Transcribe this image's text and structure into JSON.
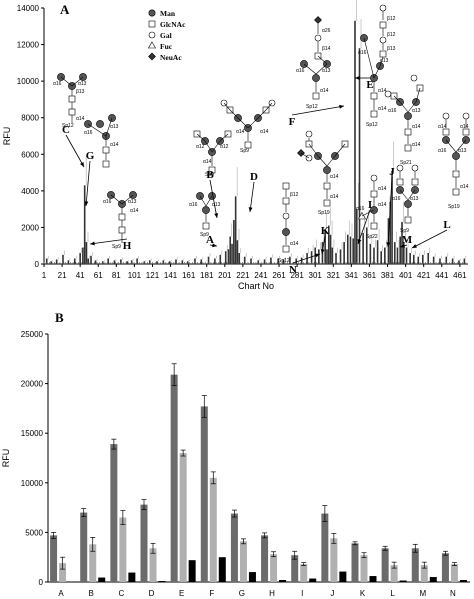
{
  "chart_data": [
    {
      "type": "bar",
      "panel_label": "A",
      "xlabel": "Chart No",
      "ylabel": "RFU",
      "ylim": [
        0,
        14000
      ],
      "yticks": [
        0,
        2000,
        4000,
        6000,
        8000,
        10000,
        12000,
        14000
      ],
      "xlim": [
        1,
        470
      ],
      "xticks": [
        1,
        21,
        41,
        61,
        81,
        101,
        121,
        141,
        161,
        181,
        201,
        221,
        241,
        261,
        281,
        301,
        321,
        341,
        361,
        381,
        401,
        421,
        441,
        461
      ],
      "grid": false,
      "x": [
        4,
        9,
        15,
        22,
        28,
        35,
        41,
        44,
        46,
        48,
        50,
        53,
        58,
        66,
        72,
        79,
        86,
        93,
        98,
        104,
        112,
        118,
        126,
        133,
        140,
        147,
        154,
        160,
        168,
        175,
        183,
        190,
        196,
        202,
        205,
        207,
        209,
        211,
        213,
        215,
        217,
        223,
        230,
        238,
        245,
        252,
        260,
        266,
        273,
        280,
        286,
        292,
        297,
        301,
        305,
        309,
        312,
        314,
        316,
        318,
        320,
        324,
        329,
        333,
        337,
        340,
        343,
        345,
        347,
        350,
        354,
        358,
        362,
        366,
        370,
        374,
        378,
        382,
        384,
        386,
        389,
        392,
        395,
        397,
        399,
        402,
        406,
        410,
        415,
        420,
        426,
        432,
        439,
        446,
        453,
        460,
        466
      ],
      "values": [
        300,
        150,
        250,
        500,
        200,
        300,
        600,
        900,
        4300,
        1200,
        300,
        450,
        200,
        150,
        300,
        200,
        250,
        150,
        200,
        300,
        150,
        200,
        150,
        200,
        150,
        250,
        200,
        150,
        300,
        250,
        400,
        300,
        500,
        700,
        800,
        1500,
        1100,
        2400,
        3700,
        1300,
        600,
        400,
        300,
        200,
        250,
        350,
        300,
        250,
        400,
        300,
        350,
        600,
        700,
        900,
        800,
        1200,
        1900,
        800,
        2100,
        1600,
        900,
        600,
        800,
        1200,
        1600,
        1500,
        1400,
        13300,
        3000,
        11800,
        1700,
        2000,
        1100,
        900,
        1300,
        700,
        900,
        2500,
        3400,
        5100,
        1200,
        900,
        1500,
        2300,
        1200,
        900,
        600,
        500,
        400,
        500,
        600,
        400,
        300,
        400,
        300,
        200,
        300
      ],
      "annotations": [
        "A",
        "B",
        "C",
        "D",
        "E",
        "F",
        "G",
        "H",
        "I",
        "J",
        "K",
        "L",
        "M",
        "N"
      ],
      "legend": [
        "Man",
        "GlcNAc",
        "Gal",
        "Fuc",
        "NeuAc"
      ],
      "glycan_labels": [
        "α16",
        "α13",
        "α12",
        "α14",
        "α26",
        "β14",
        "β12",
        "β13",
        "Sp9",
        "Sp12",
        "Sp19",
        "Sp21",
        "Sp22"
      ]
    },
    {
      "type": "bar",
      "panel_label": "B",
      "ylabel": "RFU",
      "ylim": [
        0,
        25000
      ],
      "yticks": [
        0,
        5000,
        10000,
        15000,
        20000,
        25000
      ],
      "grid": false,
      "categories": [
        "A",
        "B",
        "C",
        "D",
        "E",
        "F",
        "G",
        "H",
        "I",
        "J",
        "K",
        "L",
        "M",
        "N"
      ],
      "series": [
        {
          "color": "#6b6b6b",
          "values": [
            4700,
            7000,
            13900,
            7800,
            20900,
            17700,
            6900,
            4700,
            2700,
            6900,
            3900,
            3400,
            3400,
            2900
          ],
          "errors": [
            300,
            400,
            500,
            500,
            1100,
            1100,
            350,
            250,
            400,
            800,
            150,
            200,
            400,
            200
          ]
        },
        {
          "color": "#b0b0b0",
          "values": [
            1900,
            3800,
            6500,
            3400,
            13000,
            10500,
            4100,
            2800,
            1800,
            4400,
            2700,
            1700,
            1700,
            1800
          ],
          "errors": [
            600,
            700,
            700,
            500,
            300,
            600,
            250,
            250,
            150,
            500,
            250,
            300,
            300,
            150
          ]
        },
        {
          "color": "#000000",
          "values": [
            50,
            450,
            950,
            100,
            2200,
            2500,
            1000,
            200,
            350,
            1050,
            600,
            150,
            500,
            200
          ],
          "errors": [
            0,
            0,
            0,
            0,
            0,
            0,
            0,
            0,
            0,
            0,
            0,
            0,
            0,
            0
          ]
        }
      ]
    }
  ]
}
